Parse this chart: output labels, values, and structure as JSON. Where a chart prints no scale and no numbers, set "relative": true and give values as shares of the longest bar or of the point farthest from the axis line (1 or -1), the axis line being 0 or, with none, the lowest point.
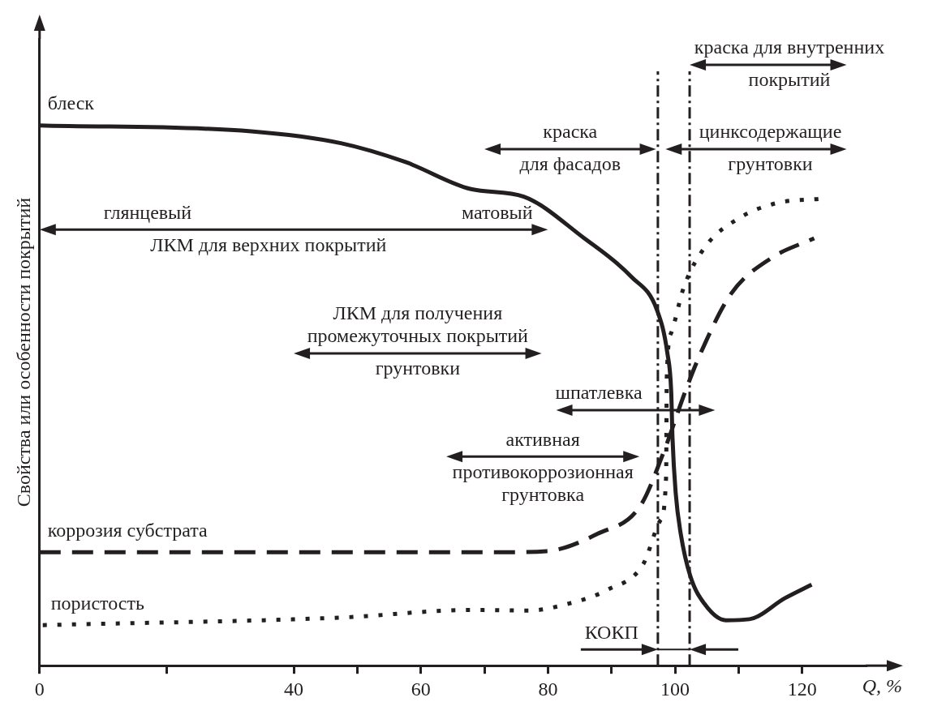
{
  "chart_data": {
    "type": "line",
    "relative": true,
    "xlabel": "Q, %",
    "ylabel": "Свойства или особенности покрытий",
    "xlim": [
      0,
      130
    ],
    "xticks": [
      {
        "value": 0,
        "label": "0"
      },
      {
        "value": 20,
        "label": null
      },
      {
        "value": 40,
        "label": "40"
      },
      {
        "value": 50,
        "label": null
      },
      {
        "value": 60,
        "label": "60"
      },
      {
        "value": 70,
        "label": null
      },
      {
        "value": 80,
        "label": "80"
      },
      {
        "value": 90,
        "label": null
      },
      {
        "value": 100,
        "label": "100"
      },
      {
        "value": 110,
        "label": null
      },
      {
        "value": 120,
        "label": "120"
      }
    ],
    "grid": false,
    "legend": false,
    "marker": "none",
    "series": [
      {
        "name": "блеск",
        "color": "#231f20",
        "line_style": "solid",
        "x": [
          0,
          33.3,
          47.4,
          57.6,
          67.9,
          76.2,
          85.6,
          93.1,
          97.2,
          98.8,
          99.4,
          99.6,
          100.1,
          100.9,
          102.4,
          104.6,
          108,
          111.7,
          117.3,
          121.5
        ],
        "values": [
          1,
          0.989,
          0.967,
          0.932,
          0.882,
          0.868,
          0.792,
          0.72,
          0.657,
          0.578,
          0.507,
          0.422,
          0.32,
          0.244,
          0.166,
          0.115,
          0.084,
          0.086,
          0.125,
          0.15
        ]
      },
      {
        "name": "коррозия субстрата",
        "color": "#231f20",
        "line_style": "dashed",
        "x": [
          0,
          57.6,
          72,
          79.8,
          87.8,
          94.5,
          98.3,
          101.6,
          103.9,
          108.8,
          115.1,
          121.9
        ],
        "values": [
          0.21,
          0.21,
          0.21,
          0.212,
          0.244,
          0.295,
          0.398,
          0.507,
          0.575,
          0.688,
          0.754,
          0.791
        ]
      },
      {
        "name": "пористость",
        "color": "#231f20",
        "line_style": "dotted",
        "x": [
          0.5,
          47.4,
          67.9,
          76.9,
          83.3,
          89.3,
          95,
          97.7,
          98.6,
          98.7,
          99.4,
          101.4,
          104.8,
          109.9,
          115.9,
          122.7
        ],
        "values": [
          0.075,
          0.089,
          0.103,
          0.102,
          0.115,
          0.14,
          0.188,
          0.269,
          0.351,
          0.531,
          0.616,
          0.701,
          0.776,
          0.827,
          0.856,
          0.864
        ]
      }
    ],
    "ref_lines": [
      {
        "axis": "x",
        "value": 97.3,
        "line_style": "dashed"
      },
      {
        "axis": "x",
        "value": 102.3,
        "line_style": "dashed"
      }
    ],
    "annotations": [
      "глянцевый",
      "матовый",
      "ЛКМ для верхних покрытий",
      "ЛКМ для получения\nпромежуточных покрытий\nгрунтовки",
      "краска\nдля фасадов",
      "цинксодержащие\nгрунтовки",
      "краска для внутренних\nпокрытий",
      "шпатлевка",
      "активная\nпротивокоррозионная\nгрунтовка",
      "КОКП"
    ]
  }
}
